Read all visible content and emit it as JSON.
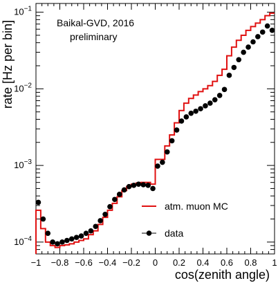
{
  "chart_data": {
    "type": "line",
    "title": "Baikal-GVD, 2016",
    "subtitle": "preliminary",
    "xlabel": "cos(zenith angle)",
    "ylabel": "rate [Hz per bin]",
    "xlim": [
      -1,
      1
    ],
    "ylim": [
      7e-05,
      0.13
    ],
    "yscale": "log",
    "grid": false,
    "legend_position": "lower-right",
    "xticks": [
      -1,
      -0.8,
      -0.6,
      -0.4,
      -0.2,
      0,
      0.2,
      0.4,
      0.6,
      0.8,
      1
    ],
    "xtick_labels": [
      "−1",
      "−0.8",
      "−0.6",
      "−0.4",
      "−0.2",
      "0",
      "0.2",
      "0.4",
      "0.6",
      "0.8",
      "1"
    ],
    "yticks": [
      0.0001,
      0.001,
      0.01,
      0.1
    ],
    "ytick_labels": [
      {
        "base": "10",
        "exp": "−4"
      },
      {
        "base": "10",
        "exp": "−3"
      },
      {
        "base": "10",
        "exp": "−2"
      },
      {
        "base": "10",
        "exp": "−1"
      }
    ],
    "bin_edges": [
      -1,
      -0.96,
      -0.92,
      -0.88,
      -0.84,
      -0.8,
      -0.76,
      -0.72,
      -0.68,
      -0.64,
      -0.6,
      -0.56,
      -0.52,
      -0.48,
      -0.44,
      -0.4,
      -0.36,
      -0.32,
      -0.28,
      -0.24,
      -0.2,
      -0.16,
      -0.12,
      -0.08,
      -0.04,
      0,
      0.04,
      0.08,
      0.12,
      0.16,
      0.2,
      0.24,
      0.28,
      0.32,
      0.36,
      0.4,
      0.44,
      0.48,
      0.52,
      0.56,
      0.6,
      0.64,
      0.68,
      0.72,
      0.76,
      0.8,
      0.84,
      0.88,
      0.92,
      0.96,
      1
    ],
    "series": [
      {
        "name": "atm. muon MC",
        "kind": "histogram",
        "color": "#e01010",
        "values": [
          0.00026,
          0.00015,
          0.0001,
          9e-05,
          8.5e-05,
          9e-05,
          9.2e-05,
          9.5e-05,
          0.0001,
          0.000105,
          0.00011,
          0.000125,
          0.00014,
          0.00017,
          0.00021,
          0.00026,
          0.00032,
          0.00039,
          0.00047,
          0.00053,
          0.00057,
          0.00059,
          0.0006,
          0.0006,
          0.00057,
          0.0012,
          0.0012,
          0.0018,
          0.0025,
          0.0036,
          0.0052,
          0.0065,
          0.0075,
          0.0083,
          0.0092,
          0.01,
          0.011,
          0.0125,
          0.015,
          0.018,
          0.027,
          0.035,
          0.043,
          0.05,
          0.058,
          0.065,
          0.072,
          0.08,
          0.09,
          0.097
        ]
      },
      {
        "name": "data",
        "kind": "points",
        "color": "#000000",
        "values": [
          0.00033,
          0.0002,
          0.00013,
          0.0001,
          9.5e-05,
          0.0001,
          0.000105,
          0.00011,
          0.000115,
          0.00012,
          0.00013,
          0.00014,
          0.00016,
          0.00019,
          0.00023,
          0.00029,
          0.00036,
          0.00042,
          0.00048,
          0.00053,
          0.00055,
          0.00057,
          0.00056,
          0.00055,
          0.0005,
          0.00098,
          0.0011,
          0.0015,
          0.0021,
          0.0029,
          0.0038,
          0.0043,
          0.0048,
          0.0051,
          0.0055,
          0.006,
          0.0065,
          0.0072,
          0.0082,
          0.0098,
          0.015,
          0.019,
          0.024,
          0.03,
          0.035,
          0.041,
          0.048,
          0.055,
          0.066,
          0.058
        ]
      }
    ]
  }
}
